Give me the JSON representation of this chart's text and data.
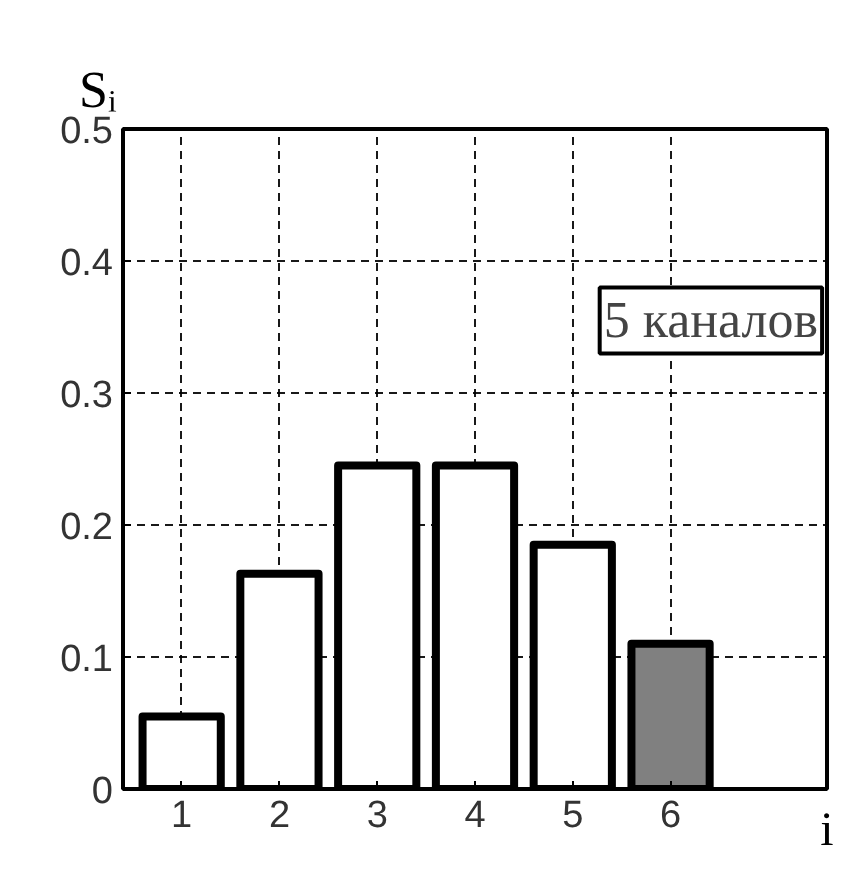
{
  "chart_data": {
    "type": "bar",
    "x": [
      1,
      2,
      3,
      4,
      5,
      6
    ],
    "values": [
      0.055,
      0.163,
      0.245,
      0.245,
      0.185,
      0.11
    ],
    "colors": [
      "#ffffff",
      "#ffffff",
      "#ffffff",
      "#ffffff",
      "#ffffff",
      "#808080"
    ],
    "ylabel": "Sᵢ",
    "xlabel": "i",
    "annotations": [
      "5 каналов"
    ],
    "xlim": [
      0.4,
      7.6
    ],
    "xticks": [
      1,
      2,
      3,
      4,
      5,
      6
    ],
    "ylim": [
      0,
      0.5
    ],
    "yticks": [
      0,
      0.1,
      0.2,
      0.3,
      0.4,
      0.5
    ],
    "grid": true
  }
}
